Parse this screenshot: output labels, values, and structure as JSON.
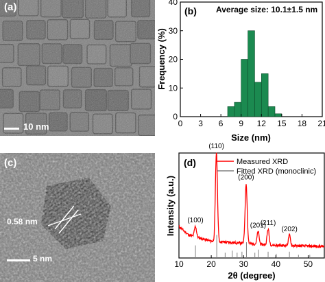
{
  "panels": {
    "a": {
      "label": "(a)",
      "scale_bar_label": "10 nm"
    },
    "b": {
      "label": "(b)",
      "annotation": "Average size: 10.1±1.5 nm"
    },
    "c": {
      "label": "(c)",
      "spacing_label": "0.58 nm",
      "scale_bar_label": "5 nm"
    },
    "d": {
      "label": "(d)"
    }
  },
  "chart_data": [
    {
      "panel": "b",
      "type": "bar",
      "title": "",
      "annotation": "Average size: 10.1±1.5 nm",
      "xlabel": "Size (nm)",
      "ylabel": "Frequency (%)",
      "xlim": [
        0,
        21
      ],
      "ylim": [
        0,
        40
      ],
      "xticks": [
        0,
        3,
        6,
        9,
        12,
        15,
        18,
        21
      ],
      "yticks": [
        0,
        10,
        20,
        30,
        40
      ],
      "bin_width": 1,
      "bin_centers": [
        7.5,
        8.5,
        9.5,
        10.5,
        11.5,
        12.5,
        13.5,
        14.5
      ],
      "values": [
        3.5,
        5,
        20,
        30,
        12,
        15,
        3.5,
        1
      ],
      "bar_color": "#1b8a50",
      "grid": false
    },
    {
      "panel": "d",
      "type": "line",
      "title": "",
      "xlabel": "2θ (degree)",
      "ylabel": "Intensity (a.u.)",
      "xlim": [
        10,
        55
      ],
      "xticks": [
        10,
        20,
        30,
        40,
        50
      ],
      "legend_position": "top-right",
      "series": [
        {
          "name": "Measured XRD",
          "color": "#ff0000",
          "baseline": 0.1,
          "background": [
            [
              10,
              0.2
            ],
            [
              13,
              0.12
            ],
            [
              20,
              0.06
            ],
            [
              30,
              0.04
            ],
            [
              40,
              0.02
            ],
            [
              55,
              0.01
            ]
          ],
          "peaks": [
            {
              "x": 15.1,
              "height": 0.1,
              "label": "(100)"
            },
            {
              "x": 21.6,
              "height": 0.85,
              "label": "(110)"
            },
            {
              "x": 30.8,
              "height": 0.57,
              "label": "(200)"
            },
            {
              "x": 34.5,
              "height": 0.12,
              "label": "(201)"
            },
            {
              "x": 37.6,
              "height": 0.15,
              "label": "(211)"
            },
            {
              "x": 44.2,
              "height": 0.1,
              "label": "(202)"
            }
          ]
        },
        {
          "name": "Fitted XRD (monoclinic)",
          "color": "#808080",
          "sticks": [
            [
              15.1,
              0.12
            ],
            [
              21.7,
              0.22
            ],
            [
              24.3,
              0.05
            ],
            [
              26.5,
              0.07
            ],
            [
              28.0,
              0.05
            ],
            [
              29.5,
              0.06
            ],
            [
              30.9,
              0.15
            ],
            [
              33.5,
              0.05
            ],
            [
              34.6,
              0.08
            ],
            [
              37.6,
              0.06
            ],
            [
              40.1,
              0.04
            ],
            [
              44.2,
              0.06
            ],
            [
              47.0,
              0.03
            ],
            [
              50.5,
              0.03
            ]
          ]
        }
      ],
      "grid": false
    }
  ]
}
